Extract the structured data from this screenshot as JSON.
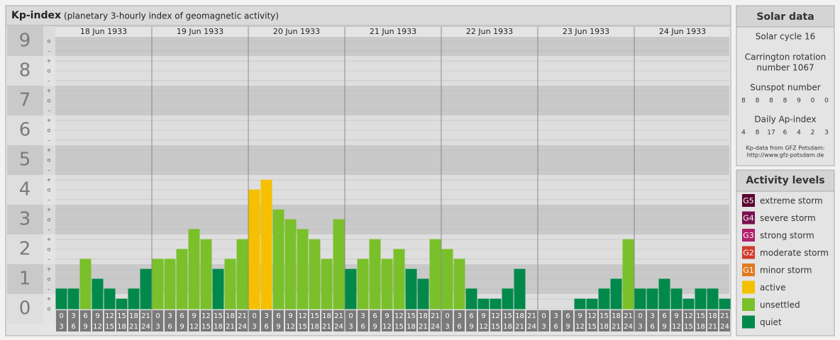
{
  "chart_data": {
    "type": "bar",
    "title": "Kp-index",
    "subtitle": "(planetary 3-hourly index of geomagnetic activity)",
    "days": [
      "18 Jun 1933",
      "19 Jun 1933",
      "20 Jun 1933",
      "21 Jun 1933",
      "22 Jun 1933",
      "23 Jun 1933",
      "24 Jun 1933"
    ],
    "hour_starts": [
      "0",
      "3",
      "6",
      "9",
      "12",
      "15",
      "18",
      "21"
    ],
    "hour_ends": [
      "3",
      "6",
      "9",
      "12",
      "15",
      "18",
      "21",
      "24"
    ],
    "values": [
      0.67,
      0.67,
      1.67,
      1,
      0.67,
      0.33,
      0.67,
      1.33,
      1.67,
      1.67,
      2,
      2.67,
      2.33,
      1.33,
      1.67,
      2.33,
      4,
      4.33,
      3.33,
      3,
      2.67,
      2.33,
      1.67,
      3,
      1.33,
      1.67,
      2.33,
      1.67,
      2,
      1.33,
      1,
      2.33,
      2,
      1.67,
      0.67,
      0.33,
      0.33,
      0.67,
      1.33,
      0,
      0,
      0,
      0,
      0.33,
      0.33,
      0.67,
      1,
      2.33,
      0.67,
      0.67,
      1,
      0.67,
      0.33,
      0.67,
      0.67,
      0.33
    ],
    "colors": [
      "#00894a",
      "#00894a",
      "#7ac02a",
      "#00894a",
      "#00894a",
      "#00894a",
      "#00894a",
      "#00894a",
      "#7ac02a",
      "#7ac02a",
      "#7ac02a",
      "#7ac02a",
      "#7ac02a",
      "#00894a",
      "#7ac02a",
      "#7ac02a",
      "#f5c000",
      "#f5c000",
      "#7ac02a",
      "#7ac02a",
      "#7ac02a",
      "#7ac02a",
      "#7ac02a",
      "#7ac02a",
      "#00894a",
      "#7ac02a",
      "#7ac02a",
      "#7ac02a",
      "#7ac02a",
      "#00894a",
      "#00894a",
      "#7ac02a",
      "#7ac02a",
      "#7ac02a",
      "#00894a",
      "#00894a",
      "#00894a",
      "#00894a",
      "#00894a",
      "#00894a",
      "#00894a",
      "#00894a",
      "#00894a",
      "#00894a",
      "#00894a",
      "#00894a",
      "#00894a",
      "#7ac02a",
      "#00894a",
      "#00894a",
      "#00894a",
      "#00894a",
      "#00894a",
      "#00894a",
      "#00894a",
      "#00894a"
    ],
    "ylim": [
      0,
      9.5
    ],
    "yticks": [
      0,
      1,
      2,
      3,
      4,
      5,
      6,
      7,
      8,
      9
    ],
    "yminor": [
      {
        "value": 0,
        "label": "o"
      },
      {
        "value": 0.33,
        "label": "+"
      },
      {
        "value": 0.67,
        "label": "–"
      },
      {
        "value": 1,
        "label": "o"
      },
      {
        "value": 1.33,
        "label": "+"
      },
      {
        "value": 1.67,
        "label": "–"
      },
      {
        "value": 2,
        "label": "o"
      },
      {
        "value": 2.33,
        "label": "+"
      },
      {
        "value": 2.67,
        "label": "–"
      },
      {
        "value": 3,
        "label": "o"
      },
      {
        "value": 3.33,
        "label": "+"
      },
      {
        "value": 3.67,
        "label": "–"
      },
      {
        "value": 4,
        "label": "o"
      },
      {
        "value": 4.33,
        "label": "+"
      },
      {
        "value": 4.67,
        "label": "–"
      },
      {
        "value": 5,
        "label": "o"
      },
      {
        "value": 5.33,
        "label": "+"
      },
      {
        "value": 5.67,
        "label": "–"
      },
      {
        "value": 6,
        "label": "o"
      },
      {
        "value": 6.33,
        "label": "+"
      },
      {
        "value": 6.67,
        "label": "–"
      },
      {
        "value": 7,
        "label": "o"
      },
      {
        "value": 7.33,
        "label": "+"
      },
      {
        "value": 7.67,
        "label": "–"
      },
      {
        "value": 8,
        "label": "o"
      },
      {
        "value": 8.33,
        "label": "+"
      },
      {
        "value": 8.67,
        "label": "–"
      },
      {
        "value": 9,
        "label": "o"
      }
    ],
    "grid": true
  },
  "solar_panel": {
    "title": "Solar data",
    "cycle": "Solar cycle 16",
    "carrington": [
      "Carrington rotation",
      "number 1067"
    ],
    "sunspot_label": "Sunspot number",
    "sunspot_values": [
      8,
      8,
      8,
      8,
      9,
      0,
      0
    ],
    "ap_label": "Daily Ap-index",
    "ap_values": [
      4,
      8,
      17,
      6,
      4,
      2,
      3
    ],
    "credit": [
      "Kp-data from GFZ Potsdam:",
      "http://www.gfz-potsdam.de"
    ]
  },
  "levels": {
    "title": "Activity levels",
    "items": [
      {
        "badge": "G5",
        "name": "extreme storm",
        "color": "#5a0030"
      },
      {
        "badge": "G4",
        "name": "severe storm",
        "color": "#7a1050"
      },
      {
        "badge": "G3",
        "name": "strong storm",
        "color": "#b0206a"
      },
      {
        "badge": "G2",
        "name": "moderate storm",
        "color": "#d03a2a"
      },
      {
        "badge": "G1",
        "name": "minor storm",
        "color": "#e07a20"
      },
      {
        "name": "active",
        "color": "#f5c000"
      },
      {
        "name": "unsettled",
        "color": "#7ac02a"
      },
      {
        "name": "quiet",
        "color": "#00894a"
      }
    ]
  }
}
